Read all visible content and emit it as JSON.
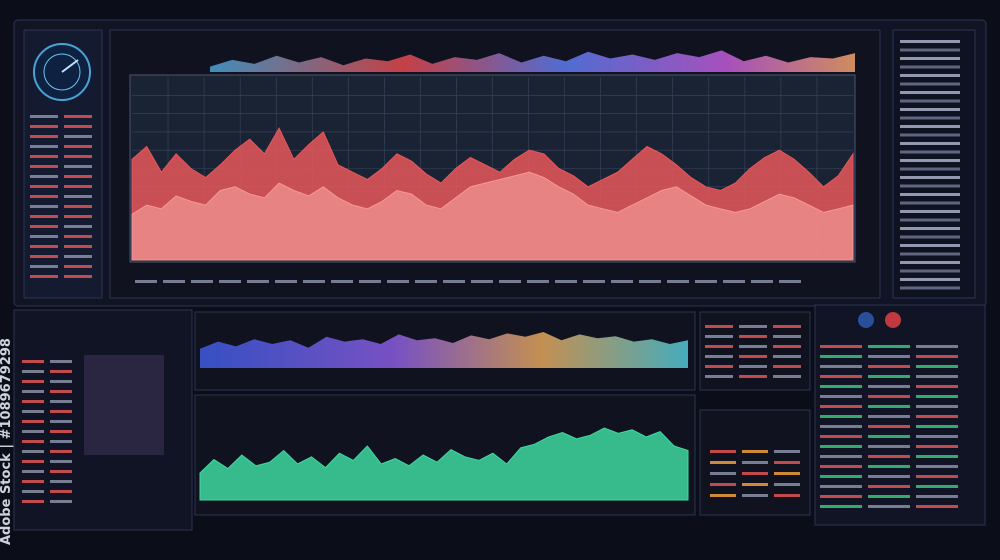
{
  "watermark": "Adobe Stock | #1089679298",
  "chart_data": [
    {
      "type": "area",
      "ylim": [
        0,
        100
      ],
      "grid": true,
      "series": [
        {
          "color": "#e8575a",
          "values": [
            55,
            62,
            48,
            58,
            50,
            45,
            52,
            60,
            66,
            58,
            72,
            55,
            63,
            70,
            52,
            48,
            44,
            50,
            58,
            54,
            47,
            42,
            50,
            56,
            52,
            48,
            55,
            60,
            58,
            50,
            46,
            40,
            44,
            48,
            55,
            62,
            58,
            52,
            45,
            40,
            38,
            42,
            50,
            56,
            60,
            55,
            48,
            40,
            46,
            58
          ]
        },
        {
          "color": "#f39a95",
          "values": [
            25,
            30,
            28,
            35,
            32,
            30,
            38,
            40,
            36,
            34,
            42,
            38,
            35,
            40,
            34,
            30,
            28,
            32,
            38,
            36,
            30,
            28,
            34,
            40,
            42,
            44,
            46,
            48,
            45,
            40,
            36,
            30,
            28,
            26,
            30,
            34,
            38,
            40,
            35,
            30,
            28,
            26,
            28,
            32,
            36,
            34,
            30,
            26,
            28,
            30
          ]
        }
      ]
    },
    {
      "type": "area",
      "ylim": [
        0,
        100
      ],
      "series": [
        {
          "color": "#6fa8dc",
          "values": [
            20,
            45,
            30,
            60,
            35,
            55,
            25,
            50,
            40,
            65,
            30,
            55,
            45,
            70,
            35,
            60,
            40,
            75,
            50,
            65,
            45,
            70,
            55,
            80,
            40,
            60,
            35,
            55,
            50,
            70
          ]
        }
      ]
    },
    {
      "type": "area",
      "ylim": [
        0,
        100
      ],
      "series": [
        {
          "color": "#6a6fe0",
          "values": [
            40,
            55,
            45,
            60,
            50,
            58,
            42,
            65,
            55,
            60,
            50,
            70,
            58,
            62,
            52,
            68,
            60,
            72,
            65,
            75,
            58,
            70,
            62,
            66,
            55,
            60,
            50,
            58
          ]
        }
      ]
    },
    {
      "type": "area",
      "ylim": [
        0,
        100
      ],
      "series": [
        {
          "color": "#3fd9a0",
          "values": [
            30,
            45,
            35,
            50,
            38,
            42,
            55,
            40,
            48,
            36,
            52,
            44,
            60,
            40,
            46,
            38,
            50,
            42,
            56,
            48,
            44,
            52,
            40,
            58,
            62,
            70,
            75,
            68,
            72,
            80,
            74,
            78,
            70,
            76,
            60,
            55
          ]
        }
      ]
    }
  ]
}
